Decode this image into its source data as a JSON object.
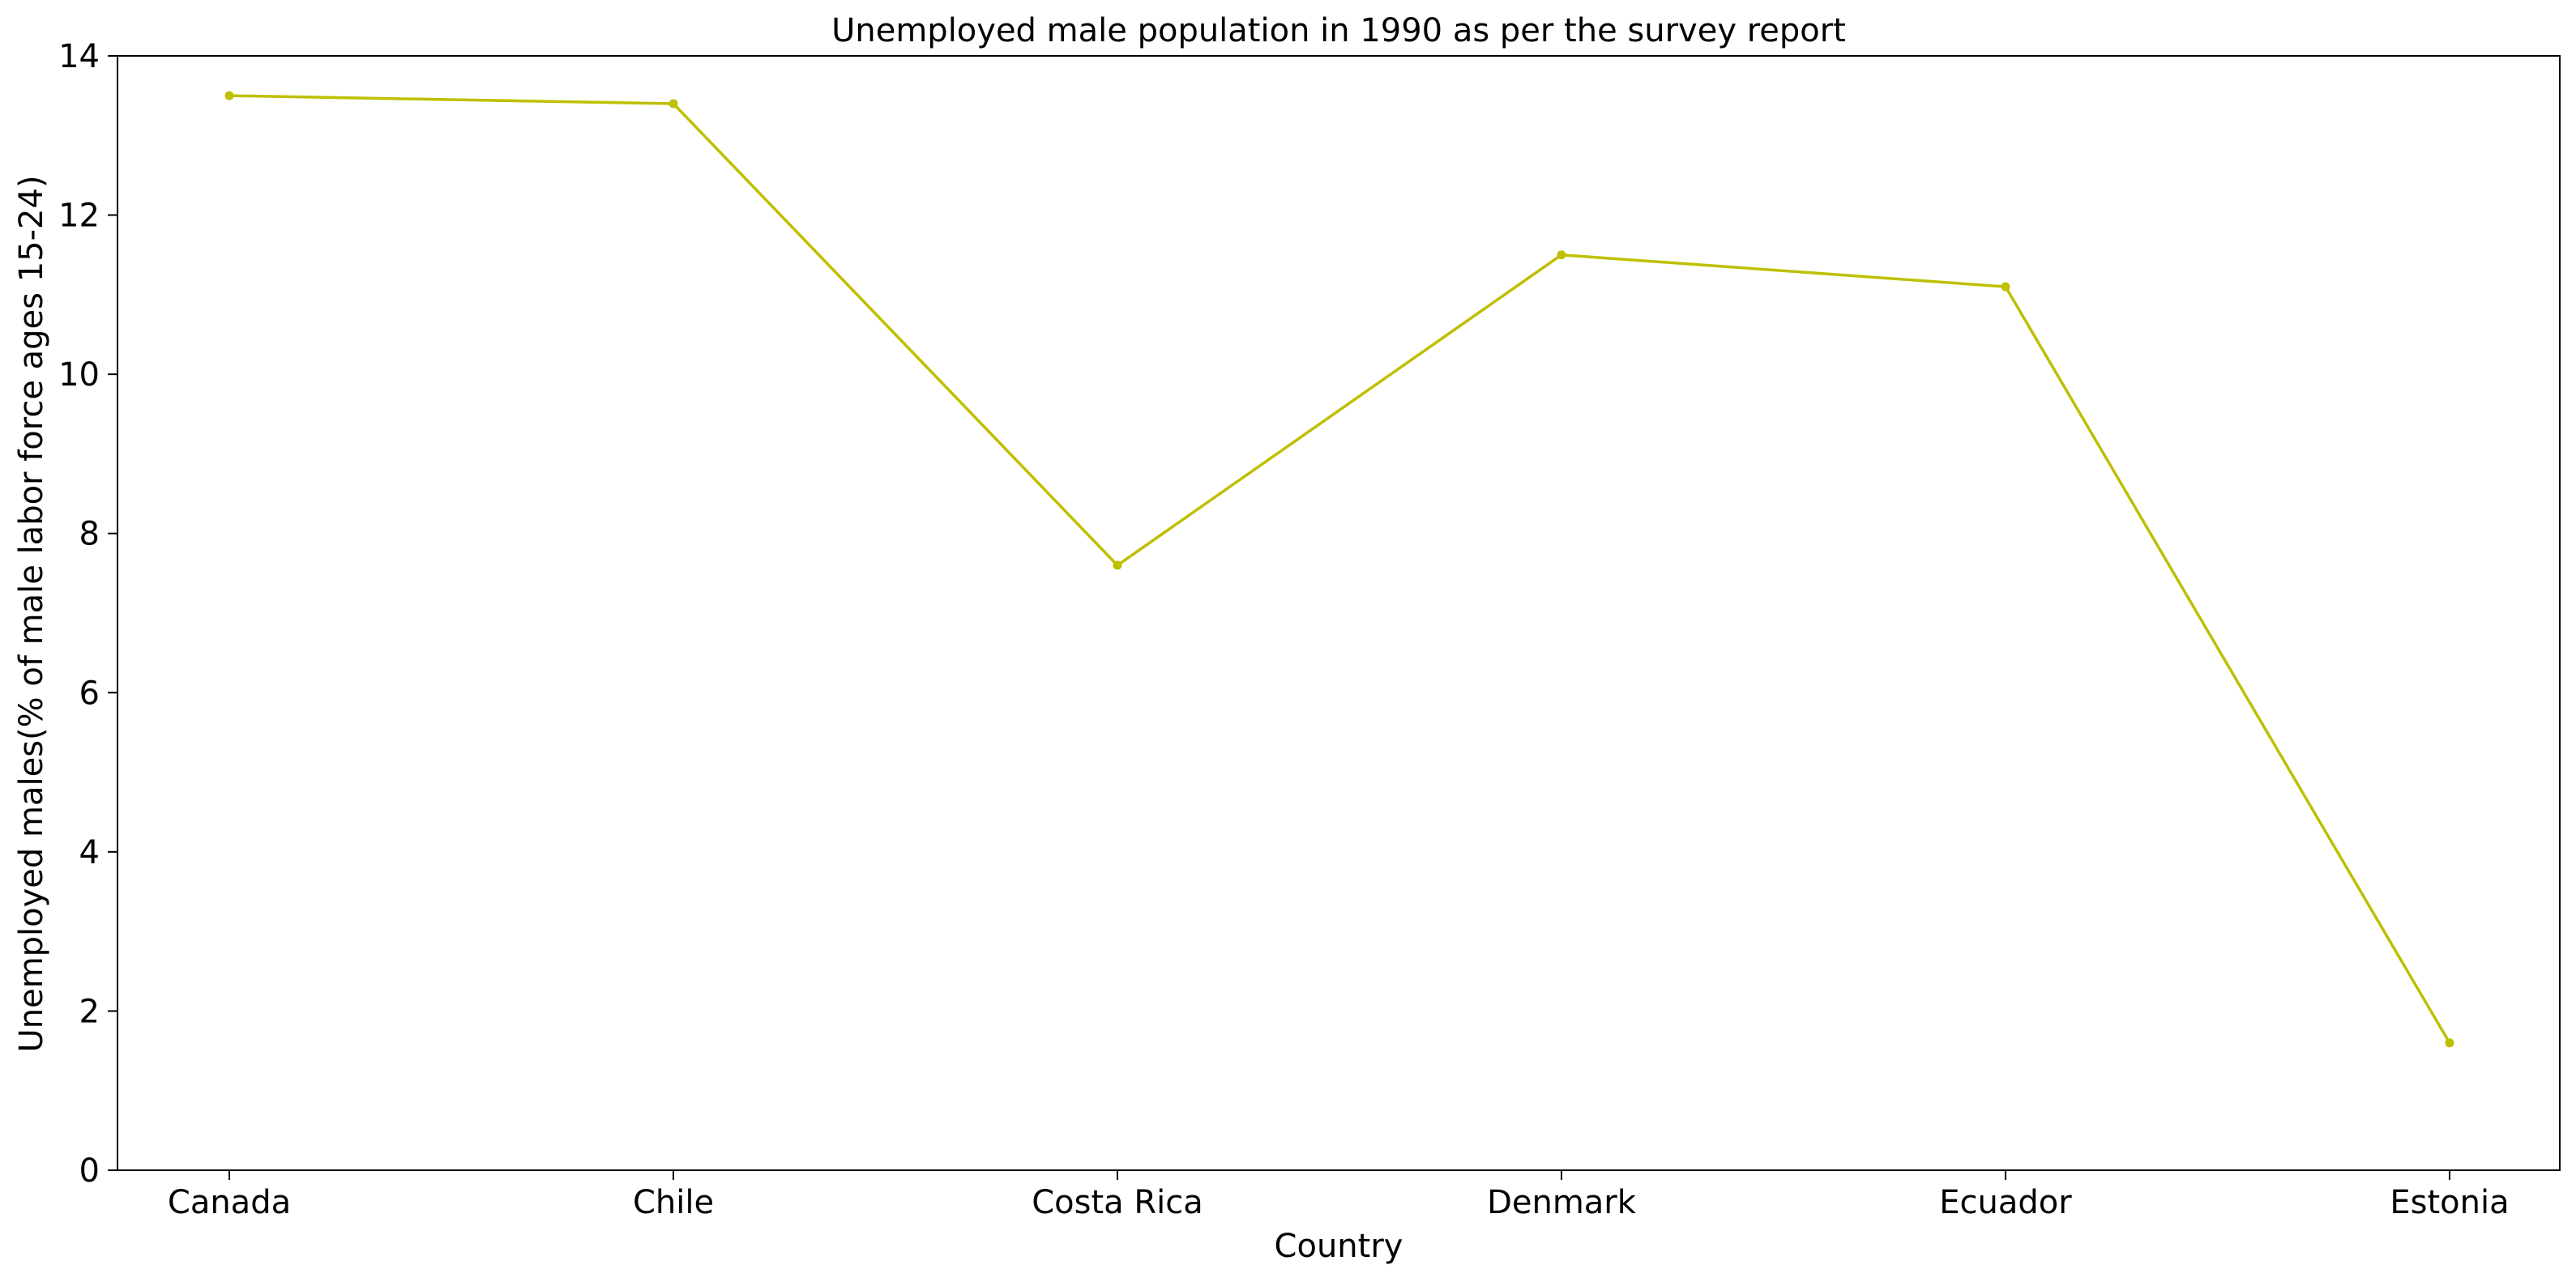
{
  "chart_data": {
    "type": "line",
    "title": "Unemployed male population in 1990 as per the survey report",
    "xlabel": "Country",
    "ylabel": "Unemployed males(% of male labor force ages 15-24)",
    "categories": [
      "Canada",
      "Chile",
      "Costa Rica",
      "Denmark",
      "Ecuador",
      "Estonia"
    ],
    "series": [
      {
        "values": [
          13.5,
          13.4,
          7.6,
          11.5,
          11.1,
          1.6
        ],
        "color": "#bfbf00"
      }
    ],
    "ylim": [
      0,
      14
    ],
    "yticks": [
      "0",
      "2",
      "4",
      "6",
      "8",
      "10",
      "12",
      "14"
    ],
    "grid": false,
    "legend": "none"
  }
}
